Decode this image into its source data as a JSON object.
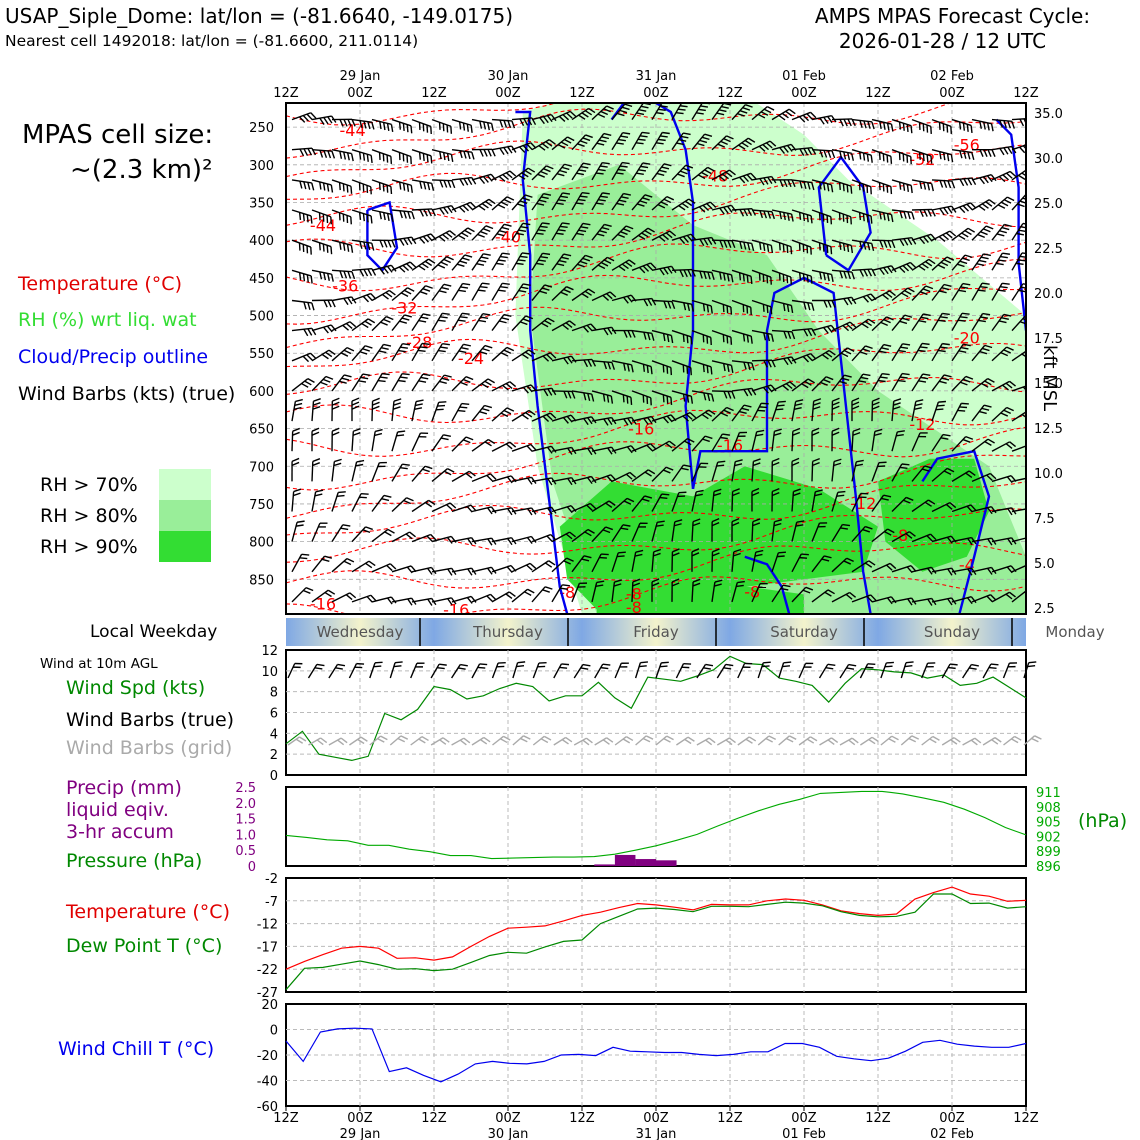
{
  "header": {
    "station": "USAP_Siple_Dome: lat/lon = (-81.6640, -149.0175)",
    "nearest": "Nearest cell 1492018: lat/lon = (-81.6600, 211.0114)",
    "cycle_line1": "AMPS MPAS Forecast Cycle:",
    "cycle_line2": "2026-01-28 / 12 UTC"
  },
  "side": {
    "cell_size_line1": "MPAS cell size:",
    "cell_size_line2": "~(2.3 km)²",
    "legend_temp": "Temperature (°C)",
    "legend_rh": "RH (%) wrt liq. wat",
    "legend_cloud": "Cloud/Precip outline",
    "legend_wind": "Wind Barbs (kts) (true)",
    "rh70": "RH > 70%",
    "rh80": "RH > 80%",
    "rh90": "RH > 90%",
    "local_weekday": "Local Weekday",
    "wind10m": "Wind at 10m AGL",
    "wind_spd": "Wind Spd (kts)",
    "wind_barbs_true": "Wind Barbs (true)",
    "wind_barbs_grid": "Wind Barbs (grid)",
    "precip1": "Precip (mm)",
    "precip2": "liquid eqiv.",
    "precip3": "3-hr accum",
    "pressure": "Pressure (hPa)",
    "hpa": "(hPa)",
    "temperature": "Temperature (°C)",
    "dewpoint": "Dew Point T (°C)",
    "windchill": "Wind Chill T (°C)",
    "kft": "kft MSL"
  },
  "colors": {
    "temp": "#ff0000",
    "dew": "#008800",
    "pressure": "#00aa00",
    "precip": "#800080",
    "windchill": "#0000ee",
    "rh70": "#ccffcc",
    "rh80": "#99ee99",
    "rh90": "#33dd33"
  },
  "chart_data": {
    "time_axis": {
      "ticks_top": [
        "12Z",
        "00Z",
        "12Z",
        "00Z",
        "12Z",
        "00Z",
        "12Z",
        "00Z",
        "12Z",
        "00Z",
        "12Z"
      ],
      "dates": [
        "29 Jan",
        "30 Jan",
        "31 Jan",
        "01 Feb",
        "02 Feb"
      ],
      "weekdays": [
        "Wednesday",
        "Thursday",
        "Friday",
        "Saturday",
        "Sunday",
        "Monday"
      ]
    },
    "profile": {
      "type": "heatmap",
      "pressure_ticks": [
        "250",
        "300",
        "350",
        "400",
        "450",
        "500",
        "550",
        "600",
        "650",
        "700",
        "750",
        "800",
        "850"
      ],
      "height_ticks": [
        "35.0",
        "30.0",
        "25.0",
        "22.5",
        "20.0",
        "17.5",
        "15.0",
        "12.5",
        "10.0",
        "7.5",
        "5.0",
        "2.5"
      ],
      "temp_labels": [
        {
          "t": 0.09,
          "p": 262,
          "text": "-44"
        },
        {
          "t": 0.05,
          "p": 388,
          "text": "-44"
        },
        {
          "t": 0.08,
          "p": 468,
          "text": "-36"
        },
        {
          "t": 0.16,
          "p": 497,
          "text": "-32"
        },
        {
          "t": 0.18,
          "p": 543,
          "text": "-28"
        },
        {
          "t": 0.25,
          "p": 564,
          "text": "-24"
        },
        {
          "t": 0.3,
          "p": 403,
          "text": "-40"
        },
        {
          "t": 0.58,
          "p": 322,
          "text": "-48"
        },
        {
          "t": 0.92,
          "p": 281,
          "text": "-56"
        },
        {
          "t": 0.86,
          "p": 300,
          "text": "-52"
        },
        {
          "t": 0.92,
          "p": 537,
          "text": "-20"
        },
        {
          "t": 0.48,
          "p": 658,
          "text": "-16"
        },
        {
          "t": 0.6,
          "p": 680,
          "text": "-16"
        },
        {
          "t": 0.86,
          "p": 652,
          "text": "-12"
        },
        {
          "t": 0.78,
          "p": 757,
          "text": "-12"
        },
        {
          "t": 0.83,
          "p": 799,
          "text": "-8"
        },
        {
          "t": 0.92,
          "p": 838,
          "text": "-4"
        },
        {
          "t": 0.38,
          "p": 875,
          "text": "-8"
        },
        {
          "t": 0.47,
          "p": 877,
          "text": "-8"
        },
        {
          "t": 0.47,
          "p": 895,
          "text": "-8"
        },
        {
          "t": 0.63,
          "p": 874,
          "text": "-8"
        },
        {
          "t": 0.05,
          "p": 890,
          "text": "-16"
        },
        {
          "t": 0.23,
          "p": 898,
          "text": "-16"
        }
      ]
    },
    "wind10m": {
      "type": "line",
      "ylim": [
        0,
        12
      ],
      "yticks": [
        0,
        2,
        4,
        6,
        8,
        10,
        12
      ],
      "speed": [
        3.0,
        4.2,
        2.0,
        1.7,
        1.4,
        1.8,
        5.9,
        5.3,
        6.3,
        8.5,
        8.2,
        7.3,
        7.6,
        8.3,
        8.8,
        8.5,
        7.1,
        7.6,
        7.6,
        8.9,
        7.4,
        6.4,
        9.4,
        9.2,
        9.0,
        9.5,
        10.1,
        11.4,
        10.7,
        10.6,
        9.3,
        9.0,
        8.6,
        7.0,
        8.8,
        10.2,
        10.1,
        9.9,
        9.8,
        9.3,
        9.6,
        8.6,
        8.8,
        9.4,
        8.4,
        7.4
      ]
    },
    "precip_pressure": {
      "type": "line",
      "precip_ylim": [
        0,
        2.5
      ],
      "precip_yticks": [
        "0",
        "0.5",
        "1.0",
        "1.5",
        "2.0",
        "2.5"
      ],
      "pressure_yticks": [
        "896",
        "899",
        "902",
        "905",
        "908",
        "911"
      ],
      "pressure_ylim": [
        896,
        912
      ],
      "pressure": [
        902.2,
        901.8,
        901.3,
        901.1,
        900.2,
        900.2,
        899.4,
        898.9,
        898.1,
        898.1,
        897.5,
        897.6,
        897.7,
        897.8,
        897.8,
        897.9,
        898.4,
        899.2,
        900.1,
        901.2,
        902.4,
        904.1,
        905.7,
        907.2,
        908.5,
        909.5,
        910.7,
        910.9,
        911.1,
        911.1,
        910.6,
        909.8,
        908.9,
        907.5,
        905.8,
        903.8,
        902.3
      ],
      "precip": [
        0,
        0,
        0,
        0,
        0,
        0,
        0,
        0,
        0,
        0,
        0,
        0,
        0,
        0,
        0,
        0.05,
        0.35,
        0.22,
        0.18,
        0,
        0,
        0,
        0,
        0,
        0,
        0,
        0,
        0,
        0,
        0,
        0,
        0,
        0,
        0,
        0,
        0,
        0
      ]
    },
    "temp_dew": {
      "type": "line",
      "ylim": [
        -27,
        -2
      ],
      "yticks": [
        "-2",
        "-7",
        "-12",
        "-17",
        "-22",
        "-27"
      ],
      "temperature": [
        -22.0,
        -20.3,
        -18.8,
        -17.4,
        -17.0,
        -17.4,
        -19.6,
        -19.5,
        -20.0,
        -19.3,
        -17.0,
        -14.8,
        -13.0,
        -12.8,
        -12.5,
        -11.4,
        -10.2,
        -9.5,
        -8.5,
        -7.6,
        -7.9,
        -8.4,
        -9.0,
        -7.8,
        -7.9,
        -7.9,
        -7.0,
        -6.6,
        -6.9,
        -7.9,
        -9.2,
        -9.8,
        -10.2,
        -9.9,
        -6.6,
        -5.2,
        -4.0,
        -5.5,
        -6.0,
        -7.1,
        -6.9
      ],
      "dewpoint": [
        -26.5,
        -21.8,
        -21.6,
        -20.9,
        -20.2,
        -21.0,
        -22.0,
        -21.9,
        -22.3,
        -22.0,
        -20.5,
        -19.0,
        -18.3,
        -18.5,
        -17.1,
        -15.9,
        -15.6,
        -12.0,
        -10.4,
        -8.8,
        -8.6,
        -8.9,
        -9.4,
        -8.2,
        -8.2,
        -8.3,
        -7.8,
        -7.3,
        -7.5,
        -8.1,
        -9.4,
        -10.2,
        -10.5,
        -10.4,
        -9.5,
        -5.5,
        -5.5,
        -7.6,
        -7.5,
        -8.6,
        -8.3
      ]
    },
    "windchill": {
      "type": "line",
      "ylim": [
        -60,
        20
      ],
      "yticks": [
        "20",
        "0",
        "-20",
        "-40",
        "-60"
      ],
      "values": [
        -9,
        -25,
        -2,
        0.5,
        1,
        0.5,
        -33,
        -30,
        -36,
        -41,
        -35,
        -27,
        -25,
        -26.5,
        -27,
        -25,
        -20,
        -19.5,
        -20.5,
        -14,
        -17,
        -17.5,
        -18,
        -18,
        -19.5,
        -20.5,
        -19.5,
        -17.5,
        -17.5,
        -11,
        -11,
        -14,
        -21,
        -23,
        -24.5,
        -22.5,
        -17,
        -10,
        -8.5,
        -11.5,
        -13,
        -14,
        -14,
        -11
      ]
    }
  }
}
